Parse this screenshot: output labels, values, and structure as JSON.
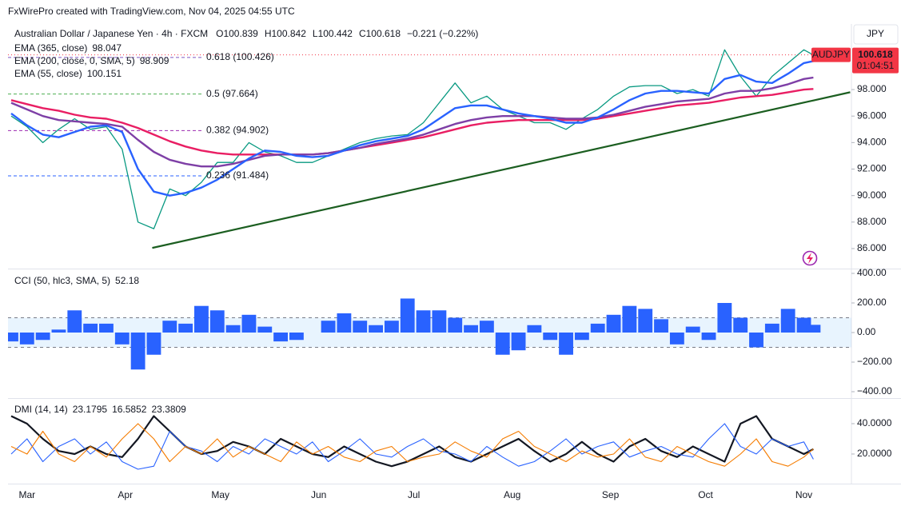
{
  "source": "FxWirePro created with TradingView.com, Nov 04, 2025 04:55 UTC",
  "chart_data": {
    "type": "line",
    "title": "Australian Dollar / Japanese Yen · 4h · FXCM",
    "ohlc": [
      "O100.839",
      "H100.842",
      "L100.442",
      "C100.618"
    ],
    "change": "−0.221 (−0.22%)",
    "currency": "JPY",
    "countdown": "01:04:51",
    "x": [
      -5,
      0,
      5,
      10,
      15,
      20,
      25,
      30,
      35,
      40,
      45,
      50,
      55,
      60,
      65,
      70,
      75,
      80,
      85,
      90,
      95,
      100,
      105,
      110,
      115,
      120,
      125,
      130,
      135,
      140,
      145,
      150,
      155,
      160,
      165,
      170,
      175,
      180,
      185,
      190,
      195,
      200,
      205,
      210,
      215,
      220,
      225,
      230,
      235,
      240,
      245,
      248
    ],
    "xlim": [
      -6,
      260
    ],
    "xticks": [
      {
        "value": 0,
        "label": "Mar"
      },
      {
        "value": 31,
        "label": "Apr"
      },
      {
        "value": 61,
        "label": "May"
      },
      {
        "value": 92,
        "label": "Jun"
      },
      {
        "value": 122,
        "label": "Jul"
      },
      {
        "value": 153,
        "label": "Aug"
      },
      {
        "value": 184,
        "label": "Sep"
      },
      {
        "value": 214,
        "label": "Oct"
      },
      {
        "value": 245,
        "label": "Nov"
      }
    ],
    "panes": [
      {
        "type": "line",
        "ylim": [
          84.55,
          102.95
        ],
        "yticks": [
          {
            "value": 86,
            "label": "86.000"
          },
          {
            "value": 88,
            "label": "88.000"
          },
          {
            "value": 90,
            "label": "90.000"
          },
          {
            "value": 92,
            "label": "92.000"
          },
          {
            "value": 94,
            "label": "94.000"
          },
          {
            "value": 96,
            "label": "96.000"
          },
          {
            "value": 98,
            "label": "98.000"
          }
        ],
        "series": [
          {
            "name": "AUDJPY",
            "color": "#089981",
            "values": [
              96.0,
              95.2,
              94.0,
              95.0,
              95.8,
              95.0,
              95.2,
              93.5,
              88.0,
              87.5,
              90.5,
              90.0,
              91.0,
              92.5,
              92.5,
              94.0,
              93.3,
              93.0,
              92.5,
              92.5,
              93.0,
              93.5,
              94.0,
              94.3,
              94.5,
              94.6,
              95.5,
              97.0,
              98.5,
              97.0,
              97.5,
              96.5,
              96.0,
              95.5,
              95.5,
              95.0,
              95.8,
              96.5,
              97.5,
              98.2,
              98.3,
              98.3,
              97.7,
              98.0,
              97.5,
              101.0,
              99.0,
              97.5,
              99.0,
              100.0,
              101.0,
              100.618
            ]
          },
          {
            "name": "EMA (365, close)",
            "color": "#e91e63",
            "values": [
              97.2,
              96.9,
              96.6,
              96.4,
              96.1,
              95.9,
              95.8,
              95.5,
              95.1,
              94.6,
              94.1,
              93.7,
              93.4,
              93.2,
              93.1,
              93.1,
              93.1,
              93.1,
              93.1,
              93.1,
              93.2,
              93.4,
              93.6,
              93.8,
              94.0,
              94.2,
              94.4,
              94.7,
              95.0,
              95.3,
              95.5,
              95.6,
              95.7,
              95.7,
              95.7,
              95.7,
              95.7,
              95.8,
              96.0,
              96.2,
              96.4,
              96.6,
              96.8,
              96.9,
              97.0,
              97.2,
              97.4,
              97.5,
              97.6,
              97.8,
              98.0,
              98.047
            ]
          },
          {
            "name": "EMA (200, close, 0, SMA, 5)",
            "color": "#7e3fa6",
            "values": [
              97.0,
              96.5,
              96.0,
              95.7,
              95.6,
              95.5,
              95.4,
              95.2,
              94.2,
              93.3,
              92.7,
              92.4,
              92.2,
              92.2,
              92.4,
              92.7,
              93.0,
              93.1,
              93.1,
              93.1,
              93.2,
              93.4,
              93.6,
              93.9,
              94.1,
              94.3,
              94.6,
              95.0,
              95.4,
              95.7,
              95.9,
              96.0,
              96.0,
              96.0,
              95.9,
              95.8,
              95.8,
              95.9,
              96.1,
              96.4,
              96.7,
              96.9,
              97.1,
              97.2,
              97.3,
              97.7,
              97.9,
              97.9,
              98.1,
              98.4,
              98.8,
              98.909
            ]
          },
          {
            "name": "EMA (55, close)",
            "color": "#2962ff",
            "values": [
              96.2,
              95.3,
              94.6,
              94.4,
              94.8,
              95.2,
              95.3,
              94.8,
              92.0,
              90.3,
              90.0,
              90.2,
              90.6,
              91.2,
              92.0,
              92.8,
              93.4,
              93.3,
              93.0,
              92.9,
              93.0,
              93.4,
              93.8,
              94.1,
              94.3,
              94.5,
              95.0,
              95.8,
              96.6,
              96.8,
              96.8,
              96.5,
              96.2,
              96.0,
              95.8,
              95.5,
              95.5,
              95.9,
              96.5,
              97.2,
              97.7,
              97.9,
              97.9,
              97.8,
              97.7,
              98.8,
              99.1,
              98.6,
              98.5,
              99.2,
              100.0,
              100.151
            ]
          }
        ],
        "fib_levels": [
          {
            "label": "0.618 (100.426)",
            "value": 100.426,
            "color": "#7e57c2"
          },
          {
            "label": "0.5 (97.664)",
            "value": 97.664,
            "color": "#4caf50"
          },
          {
            "label": "0.382 (94.902)",
            "value": 94.902,
            "color": "#9c27b0"
          },
          {
            "label": "0.236 (91.484)",
            "value": 91.484,
            "color": "#2962ff"
          }
        ],
        "trendline": {
          "x": [
            39.5,
            259.6
          ],
          "y": [
            86.05,
            97.8
          ],
          "color": "#1b5e20"
        }
      },
      {
        "type": "bar",
        "title": "CCI (50, hlc3, SMA, 5)",
        "ylim": [
          -437.8,
          421.6
        ],
        "yticks": [
          {
            "value": 400,
            "label": "400.00"
          },
          {
            "value": 200,
            "label": "200.00"
          },
          {
            "value": 0,
            "label": "0.00"
          },
          {
            "value": -200,
            "label": "−200.00"
          },
          {
            "value": -400,
            "label": "−400.00"
          }
        ],
        "bands": [
          -100,
          100
        ],
        "series": [
          {
            "color": "#2962ff",
            "values": [
              -60,
              -80,
              -50,
              20,
              150,
              60,
              60,
              -80,
              -250,
              -150,
              80,
              60,
              180,
              150,
              50,
              120,
              40,
              -60,
              -50,
              0,
              80,
              130,
              80,
              50,
              80,
              230,
              150,
              150,
              100,
              50,
              80,
              -150,
              -120,
              50,
              -50,
              -150,
              -50,
              60,
              120,
              180,
              160,
              90,
              -80,
              40,
              -50,
              200,
              100,
              -100,
              60,
              160,
              100,
              52.18
            ]
          }
        ]
      },
      {
        "type": "line",
        "title": "DMI (14, 14)",
        "ylim": [
          0.5,
          55.8
        ],
        "yticks": [
          {
            "value": 40,
            "label": "40.0000"
          },
          {
            "value": 20,
            "label": "20.0000"
          }
        ],
        "series": [
          {
            "color": "#131722",
            "values": [
              45,
              40,
              30,
              22,
              20,
              25,
              20,
              18,
              30,
              45,
              35,
              25,
              20,
              22,
              28,
              25,
              20,
              30,
              25,
              20,
              18,
              25,
              20,
              15,
              12,
              15,
              20,
              25,
              18,
              15,
              20,
              25,
              30,
              22,
              15,
              20,
              28,
              20,
              15,
              25,
              30,
              22,
              18,
              25,
              20,
              15,
              40,
              45,
              30,
              25,
              20,
              23.1795
            ]
          },
          {
            "color": "#2962ff",
            "values": [
              20,
              30,
              15,
              25,
              30,
              20,
              28,
              15,
              10,
              12,
              35,
              25,
              22,
              15,
              25,
              20,
              30,
              25,
              20,
              28,
              15,
              22,
              30,
              20,
              18,
              25,
              30,
              22,
              20,
              15,
              25,
              18,
              12,
              15,
              22,
              30,
              20,
              25,
              28,
              18,
              22,
              25,
              20,
              18,
              30,
              40,
              25,
              20,
              30,
              25,
              28,
              16.5852
            ]
          },
          {
            "color": "#f57c00",
            "values": [
              25,
              20,
              35,
              20,
              15,
              25,
              18,
              30,
              40,
              30,
              15,
              25,
              20,
              30,
              18,
              25,
              20,
              15,
              28,
              20,
              25,
              18,
              15,
              22,
              25,
              15,
              18,
              20,
              28,
              22,
              18,
              30,
              35,
              25,
              20,
              15,
              22,
              18,
              20,
              30,
              18,
              15,
              25,
              20,
              15,
              12,
              20,
              30,
              15,
              12,
              18,
              23.3809
            ]
          }
        ]
      }
    ]
  }
}
